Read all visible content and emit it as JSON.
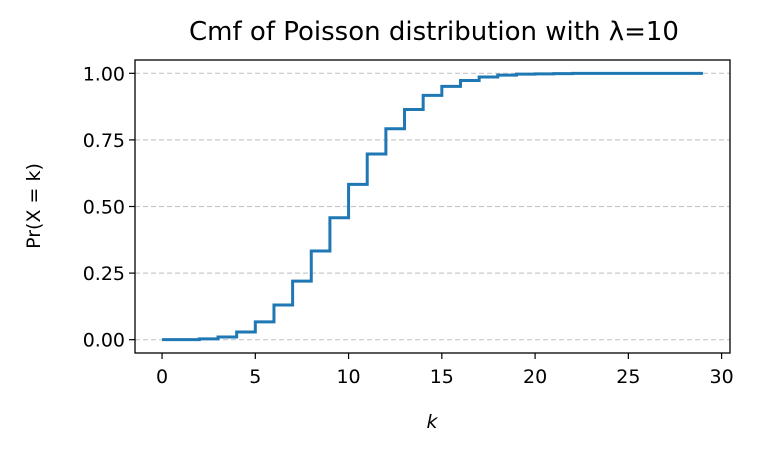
{
  "chart_data": {
    "type": "line",
    "step": "post",
    "title": "Cmf of Poisson distribution with λ=10",
    "xlabel": "k",
    "ylabel": "Pr(X = k)",
    "xlim": [
      -1.45,
      30.45
    ],
    "ylim": [
      -0.05,
      1.05
    ],
    "xticks": [
      0,
      5,
      10,
      15,
      20,
      25,
      30
    ],
    "xtick_labels": [
      "0",
      "5",
      "10",
      "15",
      "20",
      "25",
      "30"
    ],
    "yticks": [
      0.0,
      0.25,
      0.5,
      0.75,
      1.0
    ],
    "ytick_labels": [
      "0.00",
      "0.25",
      "0.50",
      "0.75",
      "1.00"
    ],
    "grid": {
      "axis": "y",
      "style": "dashed",
      "color": "#c8c8c8"
    },
    "series": [
      {
        "color": "#1f77b4",
        "x": [
          0,
          1,
          2,
          3,
          4,
          5,
          6,
          7,
          8,
          9,
          10,
          11,
          12,
          13,
          14,
          15,
          16,
          17,
          18,
          19,
          20,
          21,
          22,
          23,
          24,
          25,
          26,
          27,
          28,
          29
        ],
        "y": [
          0.0,
          0.0,
          0.003,
          0.01,
          0.029,
          0.067,
          0.13,
          0.22,
          0.333,
          0.458,
          0.583,
          0.697,
          0.792,
          0.864,
          0.917,
          0.951,
          0.973,
          0.986,
          0.993,
          0.997,
          0.998,
          0.999,
          1.0,
          1.0,
          1.0,
          1.0,
          1.0,
          1.0,
          1.0,
          1.0
        ]
      }
    ]
  }
}
